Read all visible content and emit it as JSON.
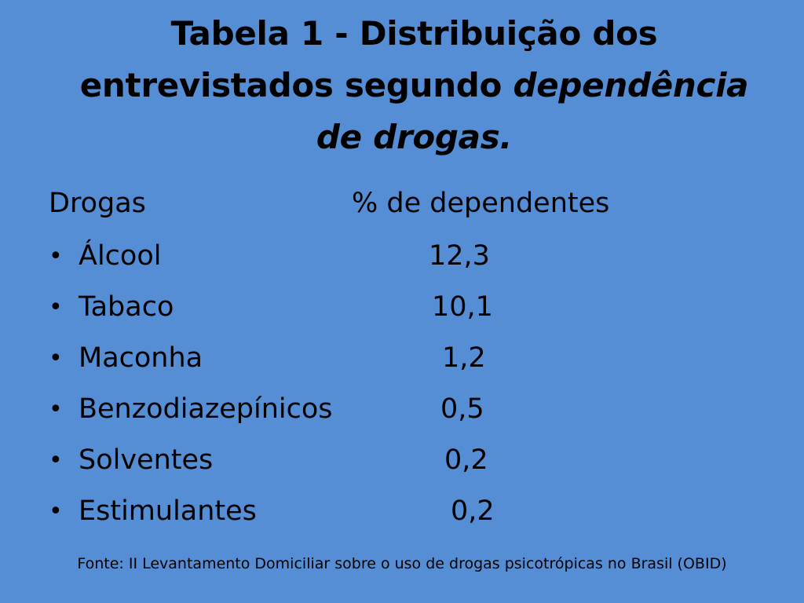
{
  "title": {
    "line1": "Tabela 1 - Distribuição dos",
    "line2_plain": "entrevistados segundo ",
    "line2_italic": "dependência",
    "line3_italic": "de drogas."
  },
  "table": {
    "header_drug": "Drogas",
    "header_pct": "% de dependentes",
    "bullet": "•",
    "rows": [
      {
        "drug": "Álcool",
        "value": "12,3"
      },
      {
        "drug": "Tabaco",
        "value": "10,1"
      },
      {
        "drug": "Maconha",
        "value": "1,2"
      },
      {
        "drug": "Benzodiazepínicos",
        "value": "0,5"
      },
      {
        "drug": "Solventes",
        "value": "0,2"
      },
      {
        "drug": "Estimulantes",
        "value": "0,2"
      }
    ]
  },
  "source": "Fonte: II Levantamento Domiciliar sobre o uso de drogas psicotrópicas no Brasil (OBID)"
}
